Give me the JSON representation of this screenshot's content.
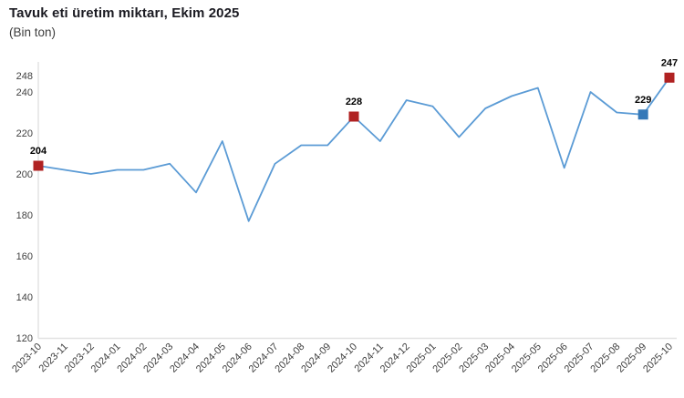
{
  "chart": {
    "title": "Tavuk eti üretim miktarı, Ekim 2025",
    "subtitle": "(Bin ton)"
  },
  "chart_data": {
    "type": "line",
    "title": "Tavuk eti üretim miktarı, Ekim 2025",
    "subtitle": "(Bin ton)",
    "ylabel": "",
    "xlabel": "",
    "unit": "Bin ton",
    "grid": "off",
    "legend": "none",
    "ylim": [
      120,
      248
    ],
    "yticks": [
      248,
      240,
      220,
      200,
      180,
      160,
      140,
      120
    ],
    "categories": [
      "2023-10",
      "2023-11",
      "2023-12",
      "2024-01",
      "2024-02",
      "2024-03",
      "2024-04",
      "2024-05",
      "2024-06",
      "2024-07",
      "2024-08",
      "2024-09",
      "2024-10",
      "2024-11",
      "2024-12",
      "2025-01",
      "2025-02",
      "2025-03",
      "2025-04",
      "2025-05",
      "2025-06",
      "2025-07",
      "2025-08",
      "2025-09",
      "2025-10"
    ],
    "values": [
      204,
      202,
      200,
      202,
      202,
      205,
      191,
      216,
      177,
      205,
      214,
      214,
      228,
      216,
      236,
      233,
      218,
      232,
      238,
      242,
      203,
      240,
      230,
      229,
      247
    ],
    "labeled_points": [
      {
        "category": "2023-10",
        "value": 204,
        "label": "204",
        "marker_color": "#b02222"
      },
      {
        "category": "2024-10",
        "value": 228,
        "label": "228",
        "marker_color": "#b02222"
      },
      {
        "category": "2025-09",
        "value": 229,
        "label": "229",
        "marker_color": "#3579b8"
      },
      {
        "category": "2025-10",
        "value": 247,
        "label": "247",
        "marker_color": "#b02222"
      }
    ],
    "colors": {
      "line": "#5b9bd5",
      "highlight_red": "#b02222",
      "highlight_blue": "#3579b8",
      "axis_line": "#e2e2e2",
      "tick_text": "#404040",
      "data_label_text": "#000000",
      "title_text": "#1b1b22"
    }
  }
}
